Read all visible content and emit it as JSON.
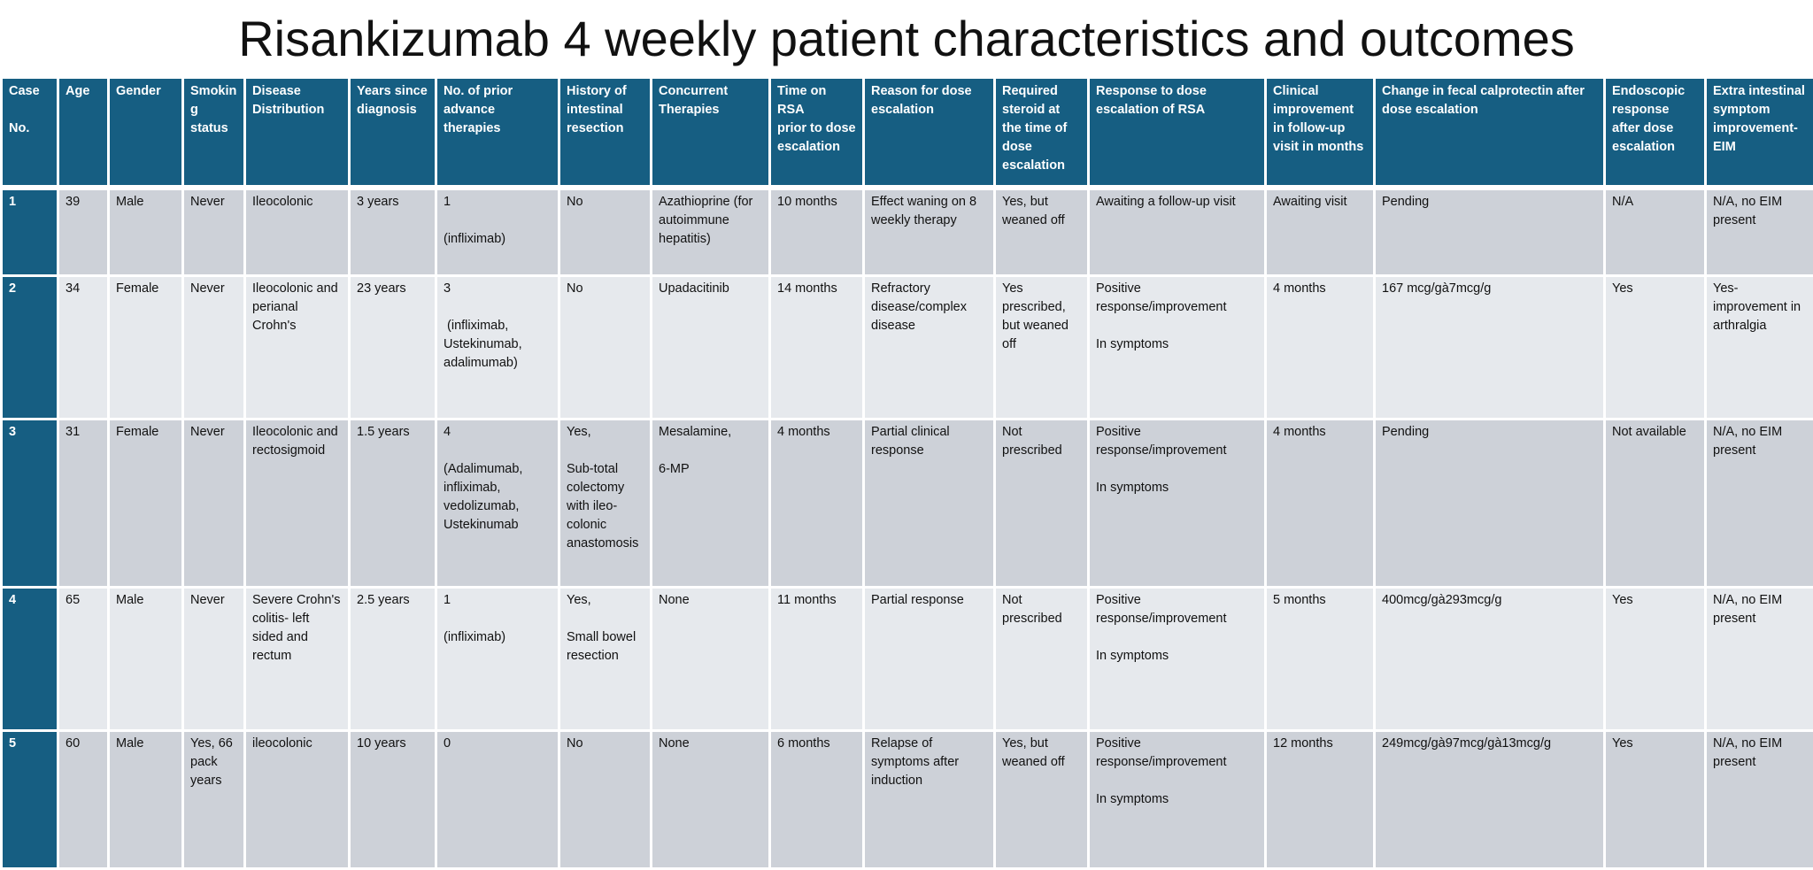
{
  "title": "Risankizumab 4 weekly patient characteristics and outcomes",
  "table": {
    "headers": [
      "Case\n\nNo.",
      "Age",
      "Gender",
      "Smokin\ng\nstatus",
      "Disease\nDistribution",
      "Years since\ndiagnosis",
      "No. of prior\nadvance\ntherapies",
      "History of\nintestinal\nresection",
      "Concurrent\nTherapies",
      "Time on RSA\nprior to dose\nescalation",
      "Reason for dose\nescalation",
      "Required\nsteroid at\nthe time of\ndose\nescalation",
      "Response to dose\nescalation of RSA",
      "Clinical\nimprovement\nin follow-up\nvisit in months",
      "Change in fecal calprotectin after\ndose escalation",
      "Endoscopic\nresponse\nafter dose\nescalation",
      "Extra intestinal\nsymptom\nimprovement-\nEIM"
    ],
    "rows": [
      [
        "1",
        "39",
        "Male",
        "Never",
        "Ileocolonic",
        "3 years",
        "1\n\n(infliximab)",
        "No",
        "Azathioprine (for\nautoimmune\nhepatitis)",
        "10 months",
        "Effect waning on 8\nweekly therapy",
        "Yes, but\nweaned off",
        "Awaiting a follow-up visit",
        "Awaiting visit",
        "Pending",
        "N/A",
        "N/A, no EIM\npresent"
      ],
      [
        "2",
        "34",
        "Female",
        "Never",
        "Ileocolonic and\nperianal\nCrohn's",
        "23 years",
        "3\n\n (infliximab,\nUstekinumab,\nadalimumab)",
        "No",
        "Upadacitinib",
        "14 months",
        "Refractory\ndisease/complex\ndisease",
        "Yes\nprescribed,\nbut weaned\noff",
        "Positive\nresponse/improvement\n\nIn symptoms",
        "4 months",
        "167 mcg/gà7mcg/g",
        "Yes",
        "Yes-\nimprovement in\narthralgia"
      ],
      [
        "3",
        "31",
        "Female",
        "Never",
        "Ileocolonic and\nrectosigmoid",
        "1.5 years",
        "4\n\n(Adalimumab,\ninfliximab,\nvedolizumab,\nUstekinumab",
        "Yes,\n\nSub-total\ncolectomy\nwith ileo-\ncolonic\nanastomosis",
        "Mesalamine,\n\n6-MP",
        "4 months",
        "Partial clinical\nresponse",
        "Not\nprescribed",
        "Positive\nresponse/improvement\n\nIn symptoms",
        "4 months",
        "Pending",
        "Not available",
        "N/A, no EIM\npresent"
      ],
      [
        "4",
        "65",
        "Male",
        "Never",
        "Severe Crohn's\ncolitis- left\nsided and\nrectum",
        "2.5 years",
        "1\n\n(infliximab)",
        "Yes,\n\nSmall bowel\nresection",
        "None",
        "11 months",
        "Partial response",
        "Not\nprescribed",
        "Positive\nresponse/improvement\n\nIn symptoms",
        "5 months",
        "400mcg/gà293mcg/g",
        "Yes",
        "N/A, no EIM\npresent"
      ],
      [
        "5",
        "60",
        "Male",
        "Yes, 66\npack\nyears",
        "ileocolonic",
        "10 years",
        "0",
        "No",
        "None",
        "6 months",
        "Relapse of\nsymptoms after\ninduction",
        "Yes, but\nweaned off",
        "Positive\nresponse/improvement\n\nIn symptoms",
        "12 months",
        "249mcg/gà97mcg/gà13mcg/g",
        "Yes",
        "N/A, no EIM\npresent"
      ]
    ]
  },
  "colors": {
    "header_bg": "#165e82",
    "row_odd_bg": "#cdd1d8",
    "row_even_bg": "#e6e9ed"
  }
}
